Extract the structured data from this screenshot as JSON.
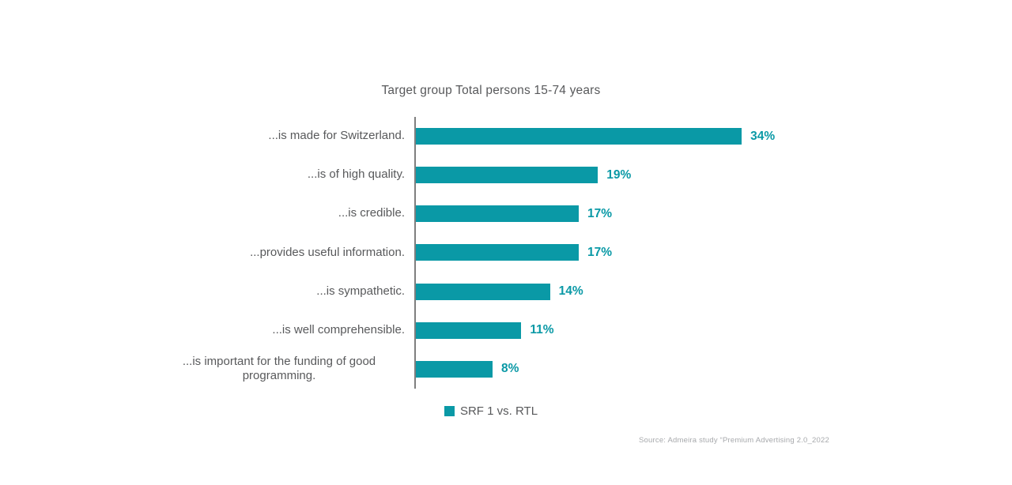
{
  "title": "Target group Total persons 15-74 years",
  "legend": {
    "label": "SRF 1 vs. RTL"
  },
  "source": "Source: Admeira study “Premium Advertising 2.0_2022",
  "colors": {
    "bar": "#0a99a6",
    "value_text": "#0a99a6",
    "label_text": "#58595b",
    "axis_line": "#7f7f7f",
    "source_text": "#a7a9ac"
  },
  "chart_data": {
    "type": "bar",
    "orientation": "horizontal",
    "title": "Target group Total persons 15-74 years",
    "categories": [
      "...is made for Switzerland.",
      "...is of high quality.",
      "...is credible.",
      "...provides useful information.",
      "...is sympathetic.",
      "...is well comprehensible.",
      "...is important for the funding of good programming."
    ],
    "values": [
      34,
      19,
      17,
      17,
      14,
      11,
      8
    ],
    "unit": "%",
    "value_labels": [
      "34%",
      "19%",
      "17%",
      "17%",
      "14%",
      "11%",
      "8%"
    ],
    "series": [
      {
        "name": "SRF 1 vs. RTL",
        "values": [
          34,
          19,
          17,
          17,
          14,
          11,
          8
        ]
      }
    ],
    "xlabel": "",
    "ylabel": "",
    "xlim": [
      0,
      36
    ],
    "grid": false,
    "legend_position": "bottom-center",
    "data_labels": true
  }
}
